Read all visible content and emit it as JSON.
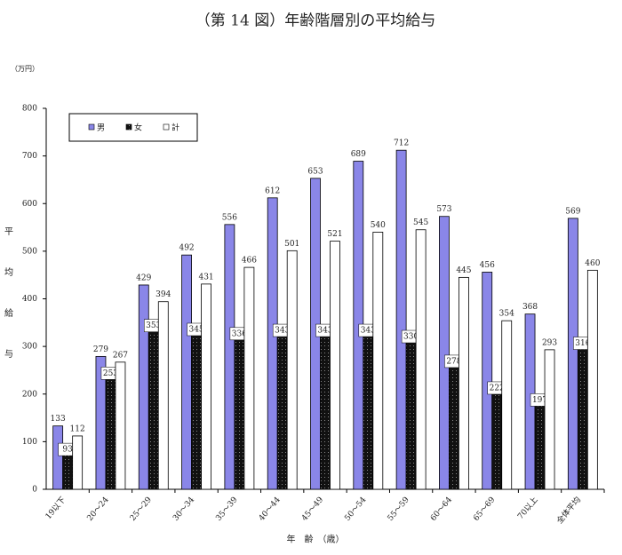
{
  "chart_data": {
    "type": "bar",
    "title": "（第 14 図）年齢階層別の平均給与",
    "unit_label": "（万円）",
    "y_label": "平均給与",
    "x_label": "年　齢　（歳）",
    "categories": [
      "19以下",
      "20～24",
      "25～29",
      "30～34",
      "35～39",
      "40～44",
      "45～49",
      "50～54",
      "55～59",
      "60～64",
      "65～69",
      "70以上",
      "全体平均"
    ],
    "series": [
      {
        "name": "男",
        "color": "#8a86e8",
        "values": [
          133,
          279,
          429,
          492,
          556,
          612,
          653,
          689,
          712,
          573,
          456,
          368,
          569
        ]
      },
      {
        "name": "女",
        "color": "#111111",
        "values": [
          93,
          253,
          353,
          345,
          336,
          343,
          343,
          343,
          330,
          278,
          222,
          197,
          316
        ]
      },
      {
        "name": "計",
        "color": "#ffffff",
        "values": [
          112,
          267,
          394,
          431,
          466,
          501,
          521,
          540,
          545,
          445,
          354,
          293,
          460
        ]
      }
    ],
    "ylim": [
      0,
      800
    ],
    "yticks": [
      0,
      100,
      200,
      300,
      400,
      500,
      600,
      700,
      800
    ]
  }
}
